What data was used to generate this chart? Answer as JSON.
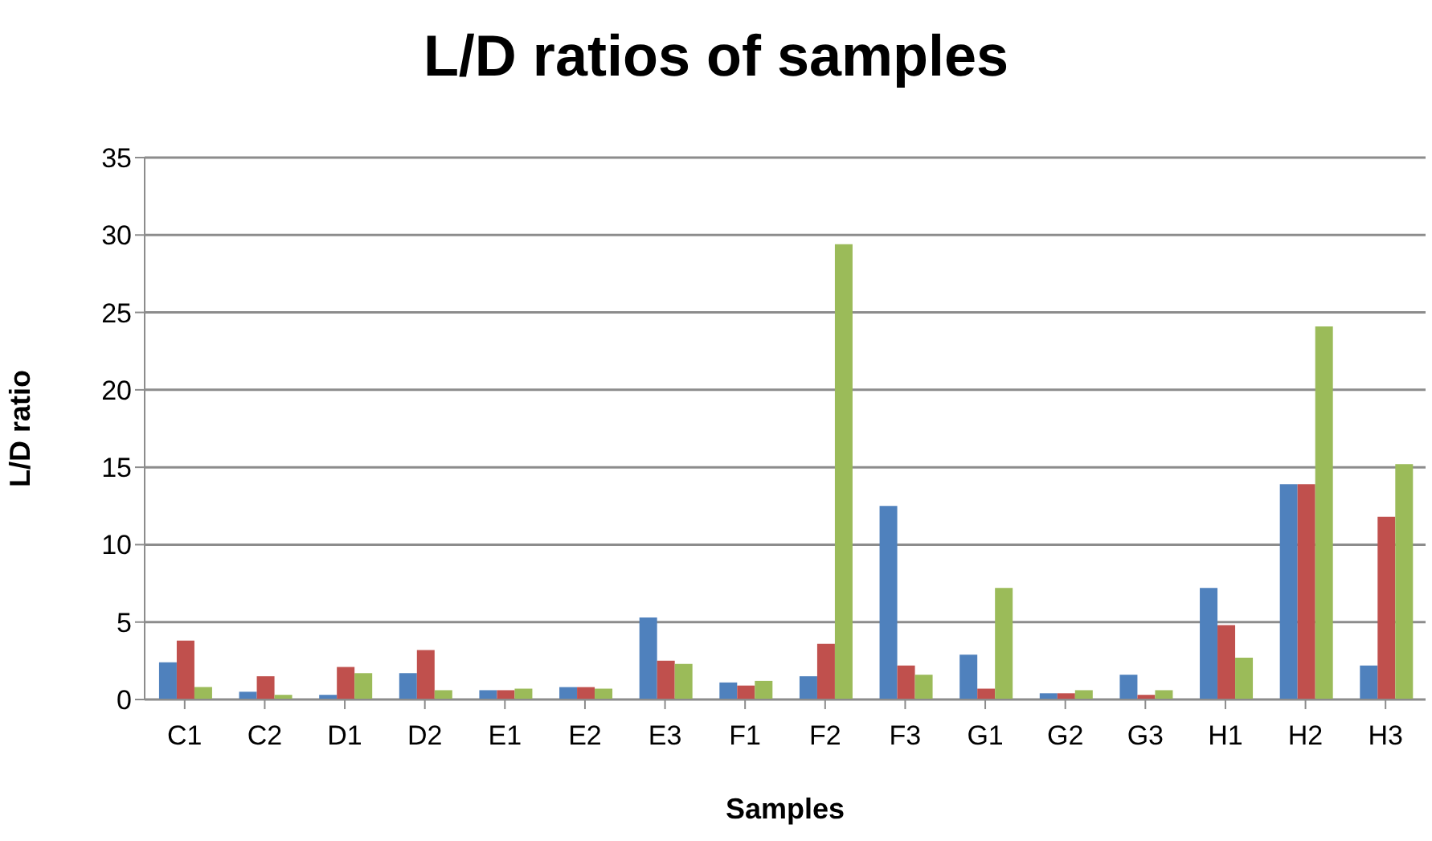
{
  "chart_data": {
    "type": "bar",
    "title": "L/D ratios of samples",
    "xlabel": "Samples",
    "ylabel": "L/D ratio",
    "categories": [
      "C1",
      "C2",
      "D1",
      "D2",
      "E1",
      "E2",
      "E3",
      "F1",
      "F2",
      "F3",
      "G1",
      "G2",
      "G3",
      "H1",
      "H2",
      "H3"
    ],
    "series": [
      {
        "color": "#4f81bd",
        "values": [
          2.4,
          0.5,
          0.3,
          1.7,
          0.6,
          0.8,
          5.3,
          1.1,
          1.5,
          12.5,
          2.9,
          0.4,
          1.6,
          7.2,
          13.9,
          2.2
        ]
      },
      {
        "color": "#c0504d",
        "values": [
          3.8,
          1.5,
          2.1,
          3.2,
          0.6,
          0.8,
          2.5,
          0.9,
          3.6,
          2.2,
          0.7,
          0.4,
          0.3,
          4.8,
          13.9,
          11.8
        ]
      },
      {
        "color": "#9bbb59",
        "values": [
          0.8,
          0.3,
          1.7,
          0.6,
          0.7,
          0.7,
          2.3,
          1.2,
          29.4,
          1.6,
          7.2,
          0.6,
          0.6,
          2.7,
          24.1,
          15.2
        ]
      }
    ],
    "ylim": [
      0,
      35
    ],
    "yticks": [
      0,
      5,
      10,
      15,
      20,
      25,
      30,
      35
    ],
    "grid": "y",
    "legend": false
  }
}
